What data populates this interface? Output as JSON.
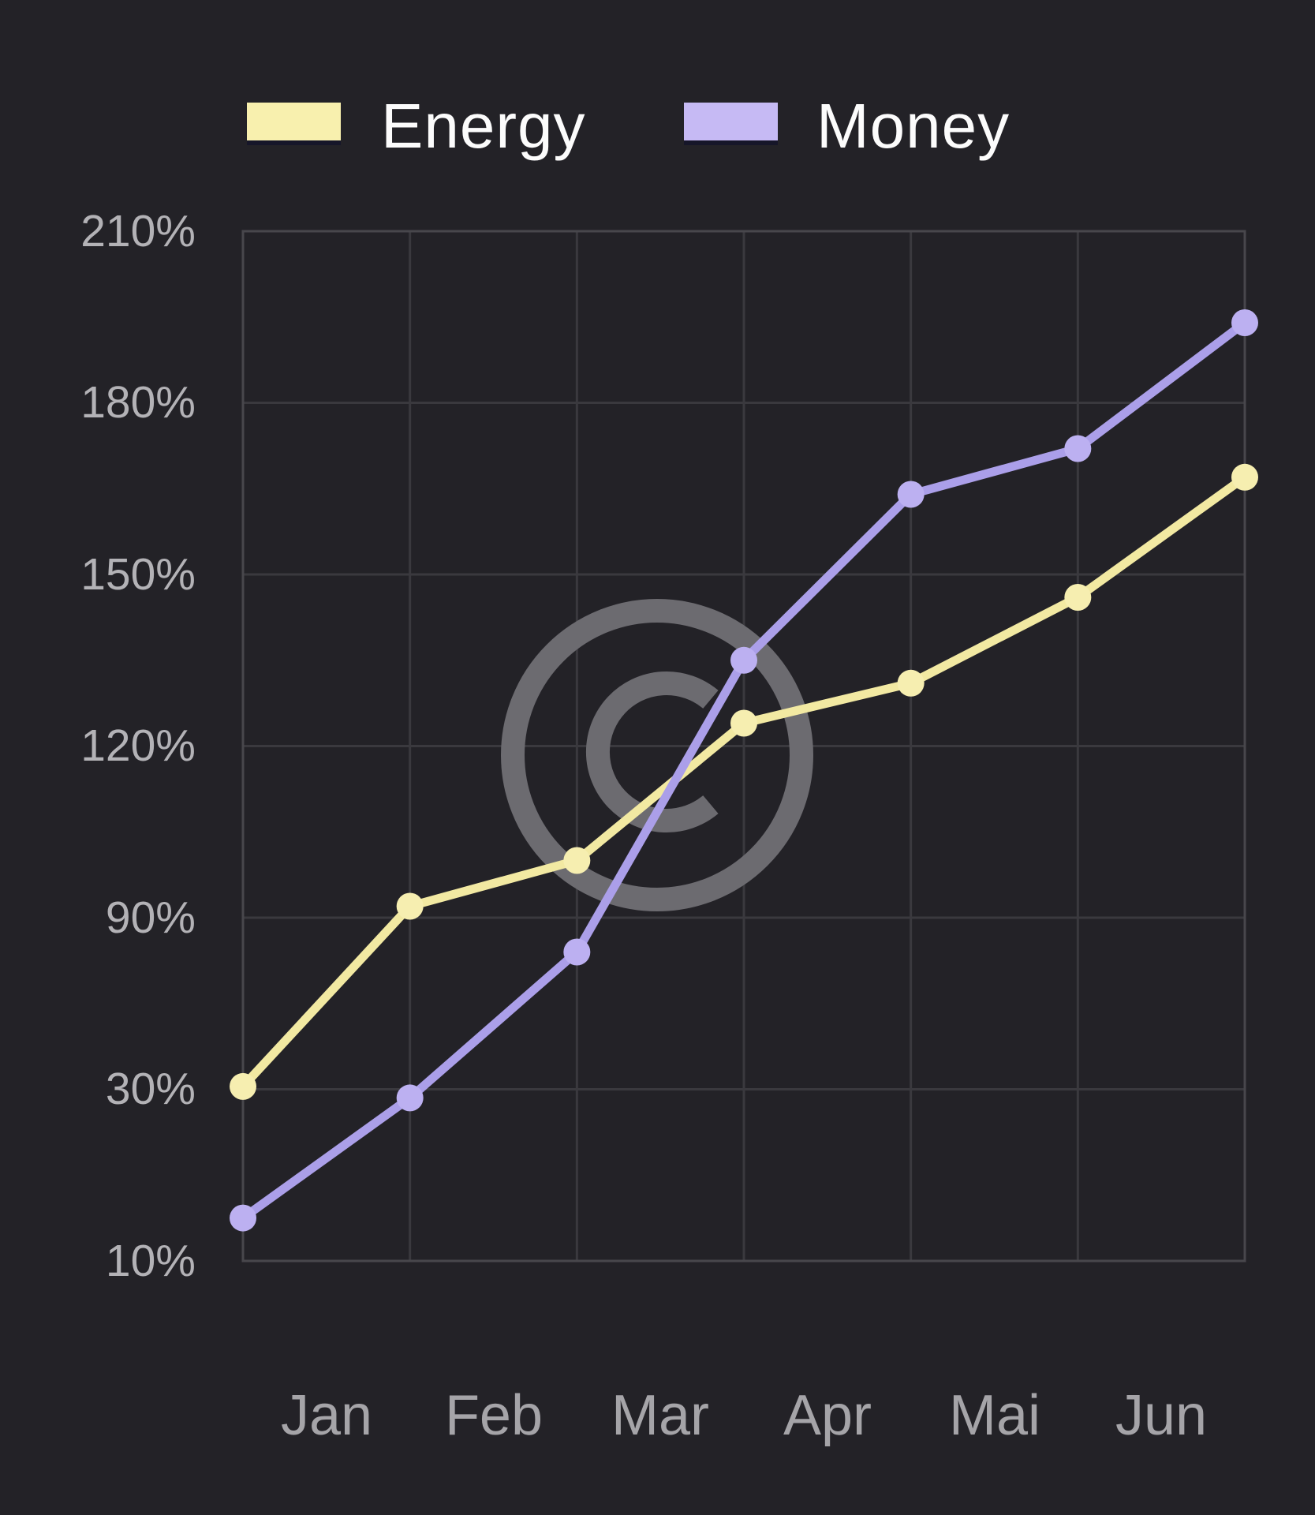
{
  "legend": {
    "items": [
      {
        "label": "Energy",
        "color": "#f8f0ae"
      },
      {
        "label": "Money",
        "color": "#c6baf4"
      }
    ]
  },
  "chart_data": {
    "type": "line",
    "title": "",
    "categories": [
      "Jan",
      "Feb",
      "Mar",
      "Apr",
      "Mai",
      "Jun"
    ],
    "y_tick_labels": [
      "210%",
      "180%",
      "150%",
      "120%",
      "90%",
      "30%",
      "10%"
    ],
    "y_tick_values": [
      210,
      180,
      150,
      120,
      90,
      30,
      10
    ],
    "series": [
      {
        "name": "Energy",
        "line_color": "#f2e9a2",
        "point_color": "#f6eeb0",
        "values_pct": [
          31,
          92,
          100,
          124,
          131,
          146,
          167
        ]
      },
      {
        "name": "Money",
        "line_color": "#ab9fe9",
        "point_color": "#bcb0f1",
        "values_pct": [
          15,
          29,
          78,
          135,
          164,
          172,
          194
        ]
      }
    ],
    "x_points_note": "7 points per series; first and last points sit on the plot edges, month labels sit between gridlines",
    "grid": true,
    "legend_position": "top",
    "watermark": "©"
  },
  "colors": {
    "background": "#232227",
    "grid_line": "#3a393e",
    "plot_border": "#48474c",
    "y_axis_label": "#b3b2b6",
    "x_axis_label": "#a5a4a8",
    "legend_text": "#fcfcfc",
    "watermark": "#6c6b70"
  }
}
